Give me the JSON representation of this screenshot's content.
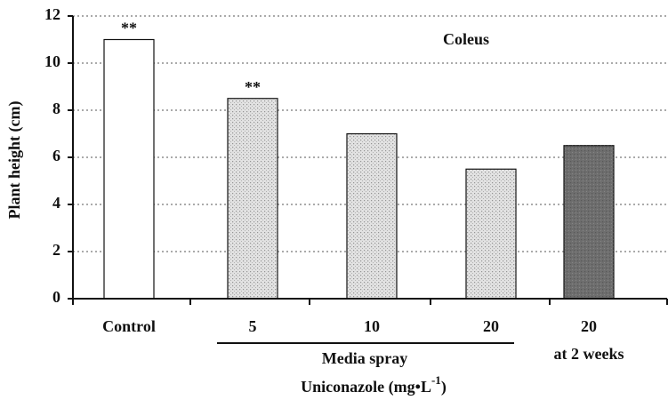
{
  "chart_data": {
    "type": "bar",
    "y_label": "Plant height (cm)",
    "x_label": {
      "text": "Uniconazole (mg•L",
      "superscript": "-1",
      "suffix": ")"
    },
    "categories": [
      "Control",
      "5",
      "10",
      "20",
      "20"
    ],
    "category_note": "at 2 weeks",
    "group_label": "Media spray",
    "values": [
      11,
      8.5,
      7,
      5.5,
      6.5
    ],
    "colors": [
      "#ffffff",
      "#e2e2e2",
      "#e2e2e2",
      "#e2e2e2",
      "#6e6e6e"
    ],
    "significance": [
      "**",
      "**"
    ],
    "annotation": "Coleus",
    "ylim": [
      0,
      12
    ],
    "yticks": [
      0,
      2,
      4,
      6,
      8,
      10,
      12
    ],
    "grid": true
  }
}
